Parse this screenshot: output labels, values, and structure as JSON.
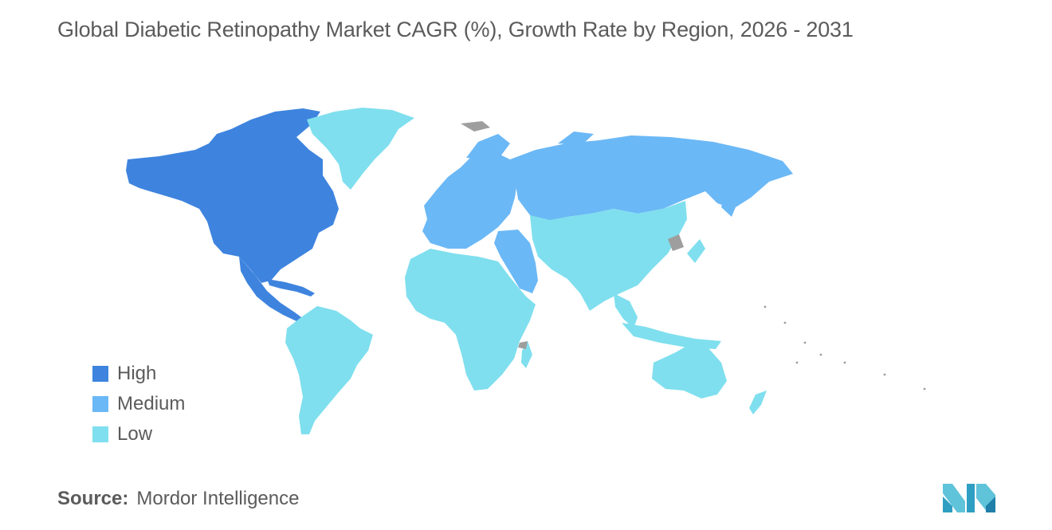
{
  "title": "Global Diabetic Retinopathy Market CAGR (%), Growth Rate by Region, 2026 - 2031",
  "legend": {
    "items": [
      {
        "label": "High",
        "color": "#3e84df"
      },
      {
        "label": "Medium",
        "color": "#6bb8f6"
      },
      {
        "label": "Low",
        "color": "#7fdfee"
      }
    ]
  },
  "regions": [
    {
      "name": "North America",
      "level": "High"
    },
    {
      "name": "Europe",
      "level": "Medium"
    },
    {
      "name": "Russia",
      "level": "Medium"
    },
    {
      "name": "Middle East",
      "level": "Medium"
    },
    {
      "name": "Greenland",
      "level": "Low"
    },
    {
      "name": "South America",
      "level": "Low"
    },
    {
      "name": "Africa",
      "level": "Low"
    },
    {
      "name": "Asia",
      "level": "Low"
    },
    {
      "name": "Australia",
      "level": "Low"
    }
  ],
  "no_data_color": "#9e9e9e",
  "source": {
    "label": "Source:",
    "value": "Mordor Intelligence"
  },
  "logo_icon": "mordor-intelligence-logo"
}
